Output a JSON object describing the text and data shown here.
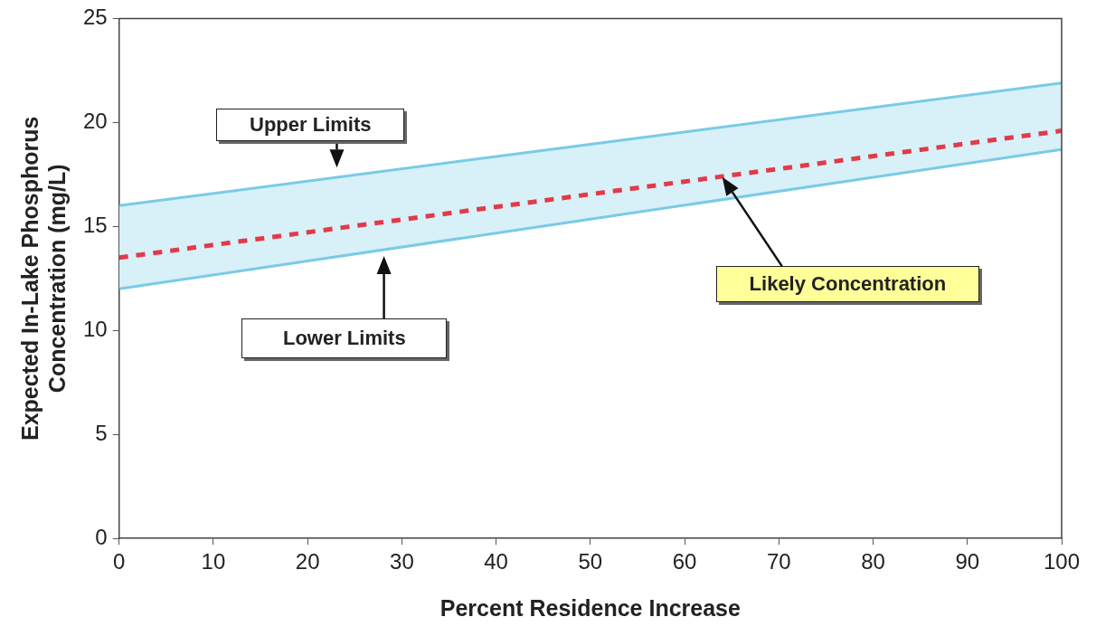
{
  "chart_data": {
    "type": "line",
    "xlabel": "Percent Residence Increase",
    "ylabel": "Expected In-Lake Phosphorus Concentration (mg/L)",
    "x": [
      0,
      50,
      100
    ],
    "series": [
      {
        "color": "#79cbe6",
        "values": [
          16,
          18.95,
          21.9
        ]
      },
      {
        "color": "#79cbe6",
        "values": [
          12,
          15.35,
          18.7
        ]
      },
      {
        "color": "#e23a48",
        "values": [
          13.5,
          16.55,
          19.6
        ],
        "lower": [
          12,
          15.35,
          18.7
        ],
        "upper": [
          16,
          18.95,
          21.9
        ],
        "line_style": "dashed"
      }
    ],
    "xlim": [
      0,
      100
    ],
    "xticks": [
      0,
      10,
      20,
      30,
      40,
      50,
      60,
      70,
      80,
      90,
      100
    ],
    "ylim": [
      0,
      25
    ],
    "yticks": [
      0,
      5,
      10,
      15,
      20,
      25
    ],
    "annotations": [
      "Upper Limits",
      "Lower Limits",
      "Likely Concentration"
    ],
    "grid": false,
    "legend": false,
    "marker": "none"
  }
}
